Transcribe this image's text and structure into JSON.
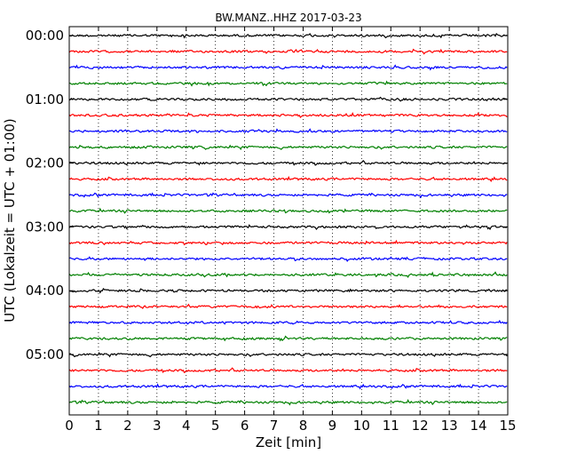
{
  "chart_data": {
    "type": "line",
    "title": "BW.MANZ..HHZ 2017-03-23",
    "xlabel": "Zeit  [min]",
    "ylabel": "UTC (Lokalzeit = UTC + 01:00)",
    "xlim": [
      0,
      15
    ],
    "x_ticks": [
      "0",
      "1",
      "2",
      "3",
      "4",
      "5",
      "6",
      "7",
      "8",
      "9",
      "10",
      "11",
      "12",
      "13",
      "14",
      "15"
    ],
    "y_ticks": [
      "00:00",
      "01:00",
      "02:00",
      "03:00",
      "04:00",
      "05:00"
    ],
    "vertical_grid": "dotted",
    "series_colors": [
      "#000000",
      "#ff0000",
      "#0000ff",
      "#008000"
    ],
    "traces": [
      {
        "start": "00:00",
        "color": "#000000"
      },
      {
        "start": "00:15",
        "color": "#ff0000"
      },
      {
        "start": "00:30",
        "color": "#0000ff"
      },
      {
        "start": "00:45",
        "color": "#008000"
      },
      {
        "start": "01:00",
        "color": "#000000"
      },
      {
        "start": "01:15",
        "color": "#ff0000"
      },
      {
        "start": "01:30",
        "color": "#0000ff"
      },
      {
        "start": "01:45",
        "color": "#008000"
      },
      {
        "start": "02:00",
        "color": "#000000"
      },
      {
        "start": "02:15",
        "color": "#ff0000"
      },
      {
        "start": "02:30",
        "color": "#0000ff"
      },
      {
        "start": "02:45",
        "color": "#008000"
      },
      {
        "start": "03:00",
        "color": "#000000"
      },
      {
        "start": "03:15",
        "color": "#ff0000"
      },
      {
        "start": "03:30",
        "color": "#0000ff"
      },
      {
        "start": "03:45",
        "color": "#008000"
      },
      {
        "start": "04:00",
        "color": "#000000"
      },
      {
        "start": "04:15",
        "color": "#ff0000"
      },
      {
        "start": "04:30",
        "color": "#0000ff"
      },
      {
        "start": "04:45",
        "color": "#008000"
      },
      {
        "start": "05:00",
        "color": "#000000"
      },
      {
        "start": "05:15",
        "color": "#ff0000"
      },
      {
        "start": "05:30",
        "color": "#0000ff"
      },
      {
        "start": "05:45",
        "color": "#008000"
      }
    ]
  }
}
